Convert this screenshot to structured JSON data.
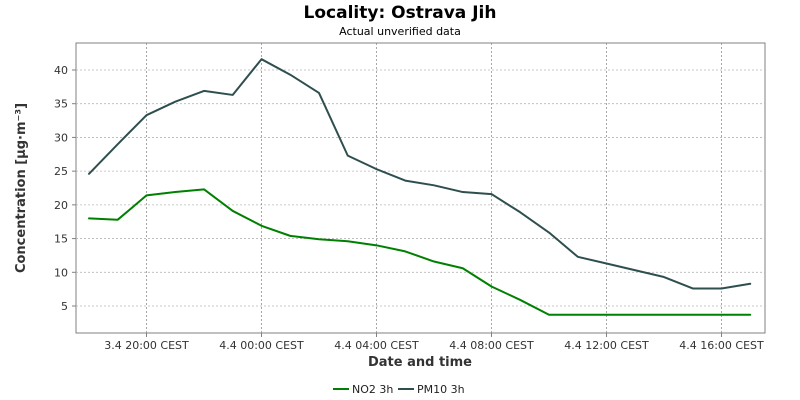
{
  "chart_data": {
    "type": "line",
    "title": "Locality: Ostrava Jih",
    "subtitle": "Actual unverified data",
    "xlabel": "Date and time",
    "ylabel": "Concentration [µg·m⁻³]",
    "x": [
      "3.4 18:00",
      "3.4 19:00",
      "3.4 20:00",
      "3.4 21:00",
      "3.4 22:00",
      "3.4 23:00",
      "4.4 00:00",
      "4.4 01:00",
      "4.4 02:00",
      "4.4 03:00",
      "4.4 04:00",
      "4.4 05:00",
      "4.4 06:00",
      "4.4 07:00",
      "4.4 08:00",
      "4.4 09:00",
      "4.4 10:00",
      "4.4 11:00",
      "4.4 12:00",
      "4.4 13:00",
      "4.4 14:00",
      "4.4 15:00",
      "4.4 16:00",
      "4.4 17:00"
    ],
    "x_tick_labels": [
      "3.4 20:00 CEST",
      "4.4 00:00 CEST",
      "4.4 04:00 CEST",
      "4.4 08:00 CEST",
      "4.4 12:00 CEST",
      "4.4 16:00 CEST"
    ],
    "x_tick_hours": [
      2,
      6,
      10,
      14,
      18,
      22
    ],
    "y_ticks": [
      5,
      10,
      15,
      20,
      25,
      30,
      35,
      40
    ],
    "ylim": [
      1,
      44
    ],
    "grid": true,
    "legend_position": "bottom",
    "series": [
      {
        "name": "NO2 3h",
        "color": "#008000",
        "values": [
          18.0,
          17.8,
          21.4,
          21.9,
          22.3,
          19.1,
          16.9,
          15.4,
          14.9,
          14.6,
          14.0,
          13.1,
          11.6,
          10.6,
          7.9,
          5.9,
          3.7,
          3.7,
          3.7,
          3.7,
          3.7,
          3.7,
          3.7,
          3.7
        ]
      },
      {
        "name": "PM10 3h",
        "color": "#2f4f4f",
        "values": [
          24.6,
          29.0,
          33.3,
          35.3,
          36.9,
          36.3,
          41.6,
          39.3,
          36.6,
          27.3,
          25.3,
          23.6,
          22.9,
          21.9,
          21.6,
          18.9,
          15.9,
          12.3,
          11.3,
          10.3,
          9.3,
          7.6,
          7.6,
          8.3
        ]
      }
    ]
  }
}
